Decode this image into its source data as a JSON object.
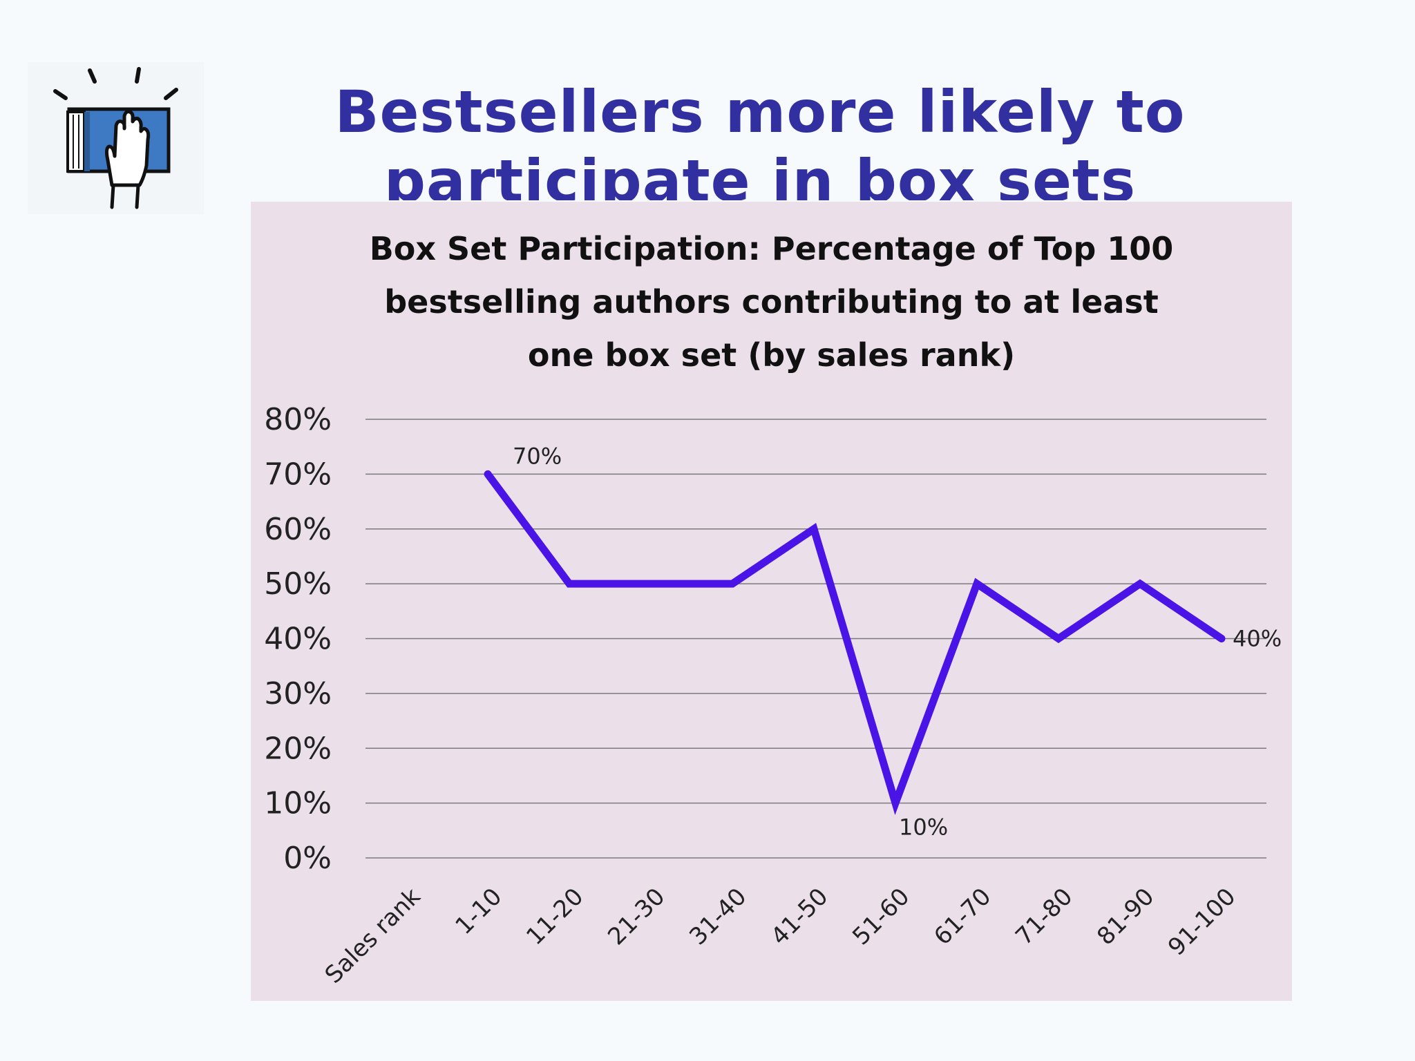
{
  "slide": {
    "title_lines": [
      "Bestsellers more likely to",
      "participate in box sets"
    ],
    "logo_icon": "book-hand-icon"
  },
  "chart_data": {
    "type": "line",
    "title_lines": [
      "Box Set Participation:  Percentage of Top 100",
      "bestselling authors contributing to at least",
      "one box set (by sales rank)"
    ],
    "categories": [
      "Sales rank",
      "1-10",
      "11-20",
      "21-30",
      "31-40",
      "41-50",
      "51-60",
      "61-70",
      "71-80",
      "81-90",
      "91-100"
    ],
    "series": [
      {
        "values": [
          null,
          70,
          50,
          50,
          50,
          60,
          10,
          50,
          40,
          50,
          40
        ]
      }
    ],
    "data_labels": [
      {
        "category": "1-10",
        "text": "70%"
      },
      {
        "category": "51-60",
        "text": "10%"
      },
      {
        "category": "91-100",
        "text": "40%"
      }
    ],
    "y_ticks": [
      "0%",
      "10%",
      "20%",
      "30%",
      "40%",
      "50%",
      "60%",
      "70%",
      "80%"
    ],
    "ylim": [
      0,
      80
    ],
    "grid": true,
    "line_color": "#4a14e6",
    "background_color": "#ebe0ea",
    "legend": "none"
  }
}
